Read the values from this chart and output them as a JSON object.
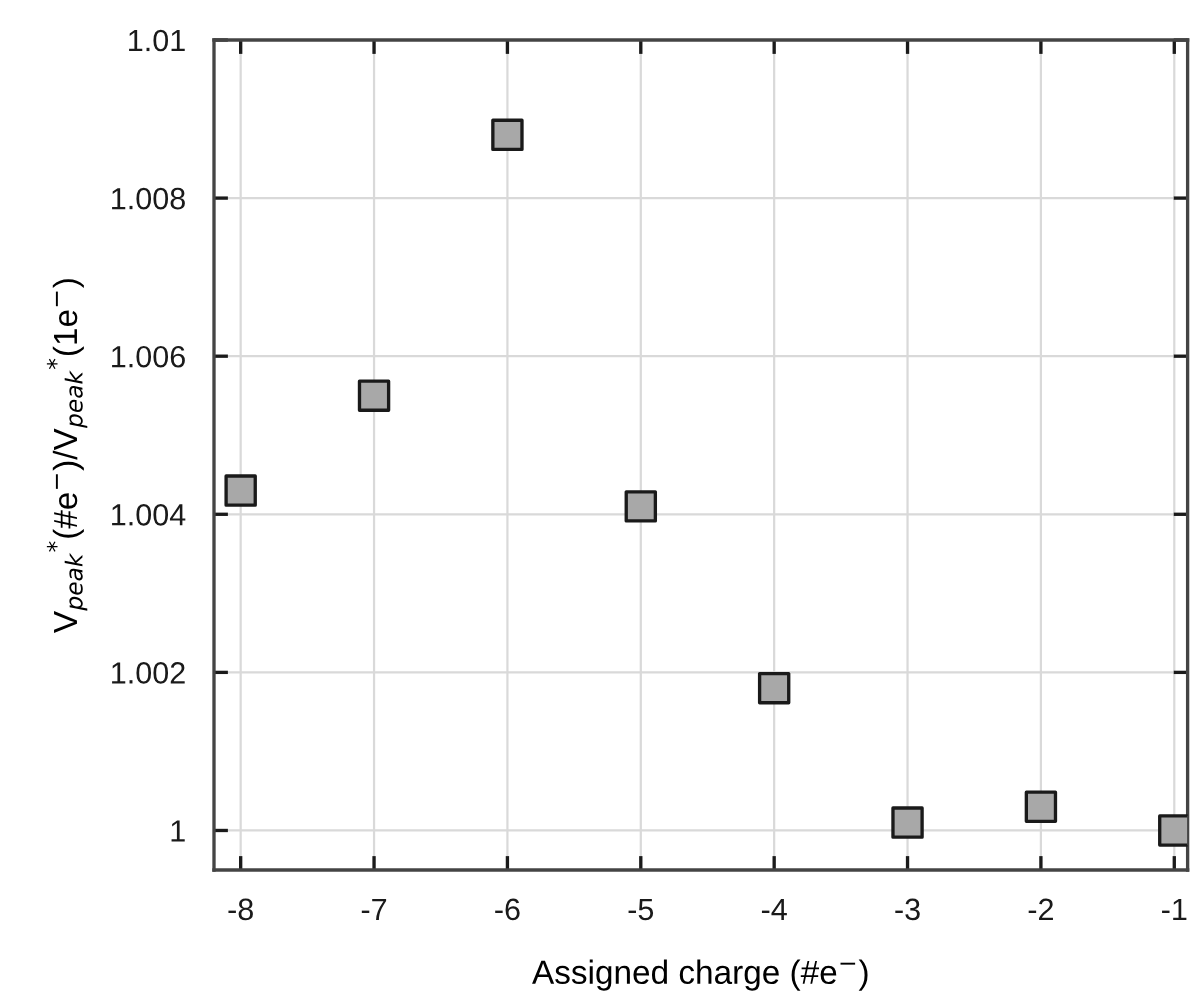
{
  "chart_data": {
    "type": "scatter",
    "xlabel": "Assigned charge (#e$^{−}$)",
    "ylabel": "V$_{peak}$$^{*}$(#e$^{−}$)/V$_{peak}$$^{*}$(1e$^{−}$)",
    "x": [
      -8,
      -7,
      -6,
      -5,
      -4,
      -3,
      -2,
      -1
    ],
    "series": [
      {
        "color": "#a8a8a8",
        "values": [
          1.0043,
          1.0055,
          1.0088,
          1.0041,
          1.0018,
          1.0001,
          1.0003,
          1.0
        ]
      }
    ],
    "marker": "square",
    "xlim": [
      -8.2,
      -0.9
    ],
    "xticks": [
      -8,
      -7,
      -6,
      -5,
      -4,
      -3,
      -2,
      -1
    ],
    "ylim": [
      0.9995,
      1.01
    ],
    "yticks": [
      1,
      1.002,
      1.004,
      1.006,
      1.008,
      1.01
    ],
    "grid": true
  }
}
